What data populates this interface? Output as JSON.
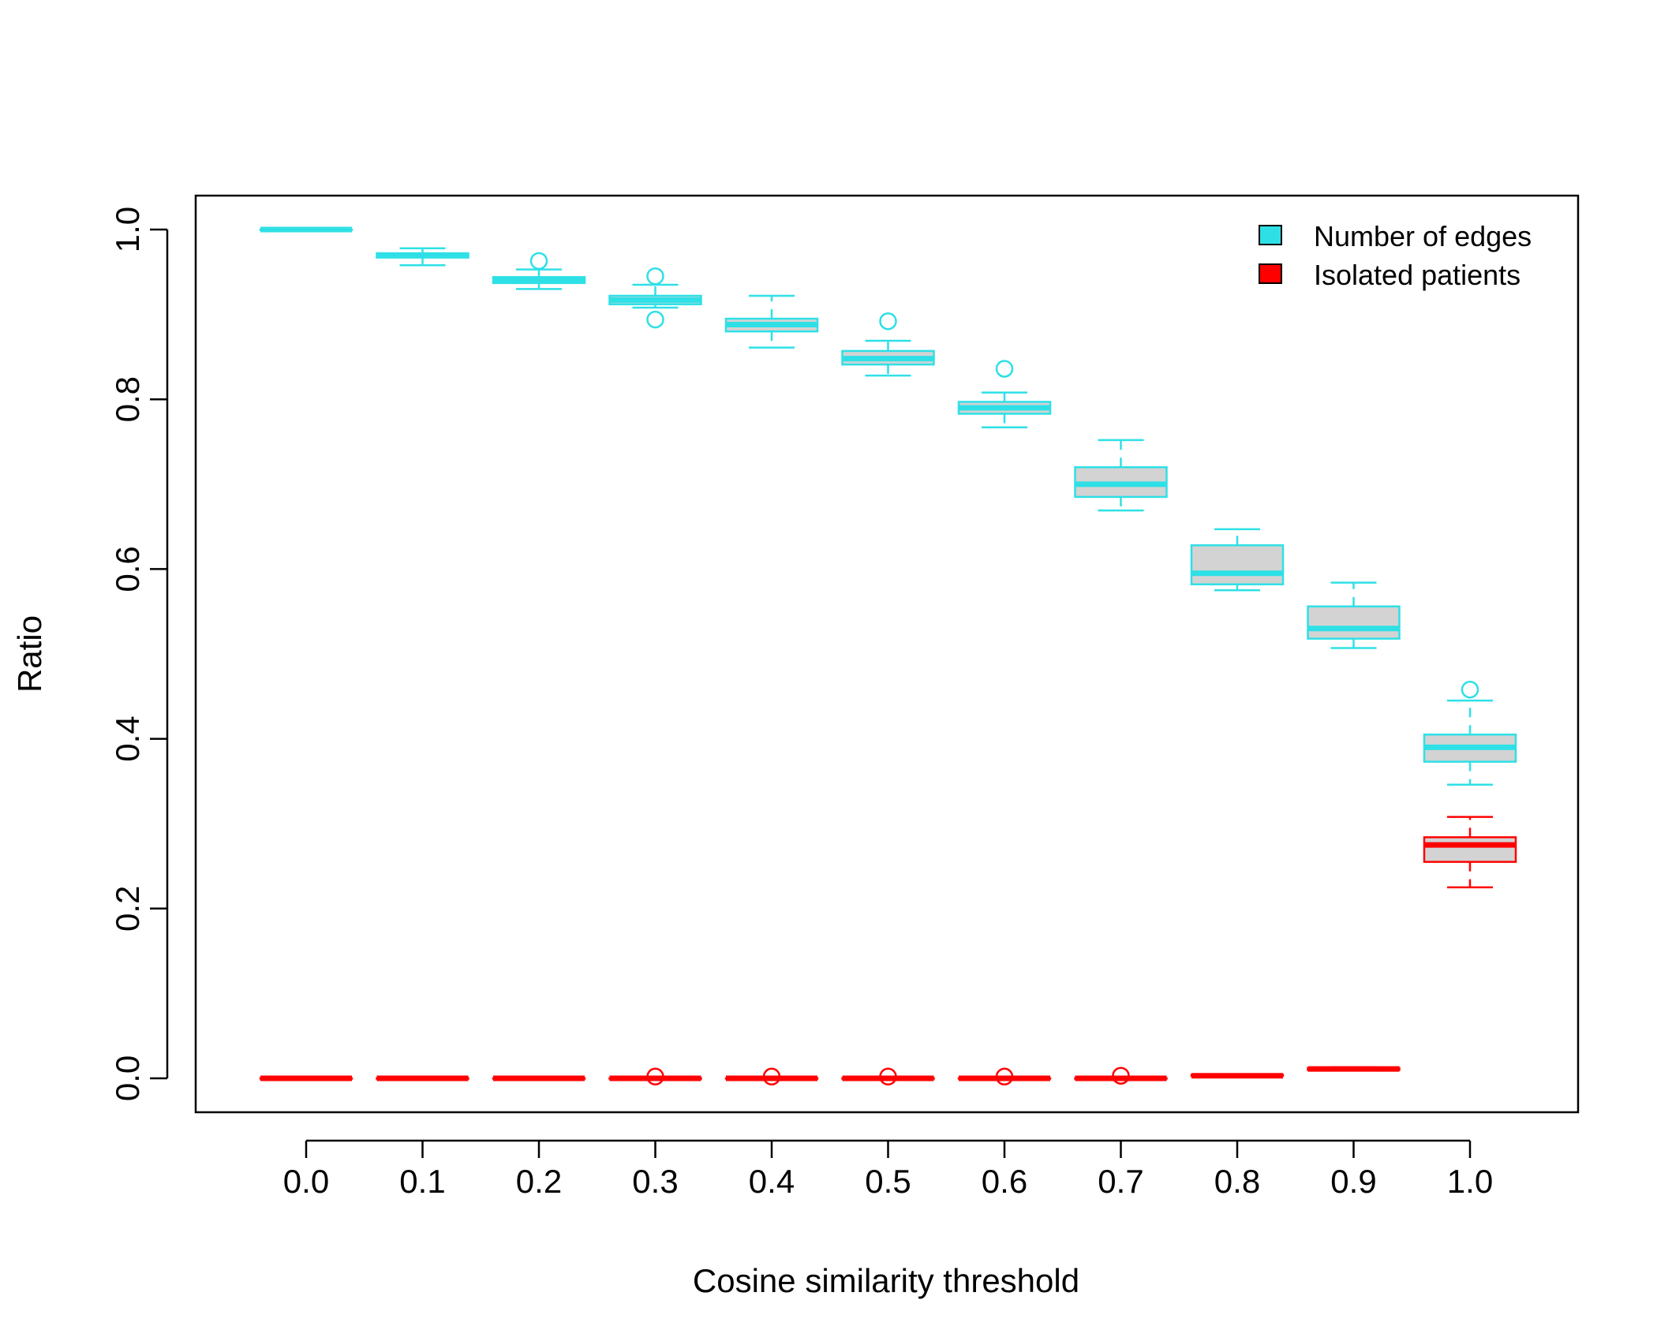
{
  "chart_data": {
    "type": "boxplot",
    "title": "",
    "xlabel": "Cosine similarity threshold",
    "ylabel": "Ratio",
    "categories": [
      "0.0",
      "0.1",
      "0.2",
      "0.3",
      "0.4",
      "0.5",
      "0.6",
      "0.7",
      "0.8",
      "0.9",
      "1.0"
    ],
    "yticks": [
      "0.0",
      "0.2",
      "0.4",
      "0.6",
      "0.8",
      "1.0"
    ],
    "ylim": [
      -0.04,
      1.04
    ],
    "grid": false,
    "legend_position": "top-right",
    "series": [
      {
        "name": "Number of edges",
        "color": "#2EE0E6",
        "boxes": [
          {
            "x": "0.0",
            "min": 1.0,
            "q1": 1.0,
            "median": 1.0,
            "q3": 1.0,
            "max": 1.0,
            "outliers": []
          },
          {
            "x": "0.1",
            "min": 0.958,
            "q1": 0.967,
            "median": 0.97,
            "q3": 0.972,
            "max": 0.978,
            "outliers": []
          },
          {
            "x": "0.2",
            "min": 0.93,
            "q1": 0.937,
            "median": 0.94,
            "q3": 0.944,
            "max": 0.953,
            "outliers": [
              0.963
            ]
          },
          {
            "x": "0.3",
            "min": 0.908,
            "q1": 0.912,
            "median": 0.917,
            "q3": 0.922,
            "max": 0.935,
            "outliers": [
              0.945,
              0.894
            ]
          },
          {
            "x": "0.4",
            "min": 0.861,
            "q1": 0.88,
            "median": 0.888,
            "q3": 0.895,
            "max": 0.922,
            "outliers": []
          },
          {
            "x": "0.5",
            "min": 0.828,
            "q1": 0.841,
            "median": 0.848,
            "q3": 0.857,
            "max": 0.869,
            "outliers": [
              0.892
            ]
          },
          {
            "x": "0.6",
            "min": 0.767,
            "q1": 0.783,
            "median": 0.79,
            "q3": 0.797,
            "max": 0.808,
            "outliers": [
              0.836
            ]
          },
          {
            "x": "0.7",
            "min": 0.669,
            "q1": 0.685,
            "median": 0.7,
            "q3": 0.72,
            "max": 0.752,
            "outliers": []
          },
          {
            "x": "0.8",
            "min": 0.575,
            "q1": 0.582,
            "median": 0.595,
            "q3": 0.628,
            "max": 0.647,
            "outliers": []
          },
          {
            "x": "0.9",
            "min": 0.507,
            "q1": 0.518,
            "median": 0.53,
            "q3": 0.556,
            "max": 0.584,
            "outliers": []
          },
          {
            "x": "1.0",
            "min": 0.346,
            "q1": 0.373,
            "median": 0.39,
            "q3": 0.405,
            "max": 0.445,
            "outliers": [
              0.458
            ]
          }
        ]
      },
      {
        "name": "Isolated patients",
        "color": "#FF0000",
        "boxes": [
          {
            "x": "0.0",
            "min": 0.0,
            "q1": 0.0,
            "median": 0.0,
            "q3": 0.0,
            "max": 0.0,
            "outliers": []
          },
          {
            "x": "0.1",
            "min": 0.0,
            "q1": 0.0,
            "median": 0.0,
            "q3": 0.0,
            "max": 0.0,
            "outliers": []
          },
          {
            "x": "0.2",
            "min": 0.0,
            "q1": 0.0,
            "median": 0.0,
            "q3": 0.0,
            "max": 0.0,
            "outliers": []
          },
          {
            "x": "0.3",
            "min": 0.0,
            "q1": 0.0,
            "median": 0.0,
            "q3": 0.0,
            "max": 0.0,
            "outliers": [
              0.002
            ]
          },
          {
            "x": "0.4",
            "min": 0.0,
            "q1": 0.0,
            "median": 0.0,
            "q3": 0.0,
            "max": 0.0,
            "outliers": [
              0.002
            ]
          },
          {
            "x": "0.5",
            "min": 0.0,
            "q1": 0.0,
            "median": 0.0,
            "q3": 0.0,
            "max": 0.0,
            "outliers": [
              0.002
            ]
          },
          {
            "x": "0.6",
            "min": 0.0,
            "q1": 0.0,
            "median": 0.0,
            "q3": 0.0,
            "max": 0.0,
            "outliers": [
              0.002
            ]
          },
          {
            "x": "0.7",
            "min": 0.0,
            "q1": 0.0,
            "median": 0.0,
            "q3": 0.0,
            "max": 0.0,
            "outliers": [
              0.003
            ]
          },
          {
            "x": "0.8",
            "min": 0.002,
            "q1": 0.003,
            "median": 0.003,
            "q3": 0.004,
            "max": 0.004,
            "outliers": []
          },
          {
            "x": "0.9",
            "min": 0.009,
            "q1": 0.01,
            "median": 0.011,
            "q3": 0.012,
            "max": 0.013,
            "outliers": []
          },
          {
            "x": "1.0",
            "min": 0.225,
            "q1": 0.255,
            "median": 0.275,
            "q3": 0.284,
            "max": 0.308,
            "outliers": []
          }
        ]
      }
    ]
  }
}
